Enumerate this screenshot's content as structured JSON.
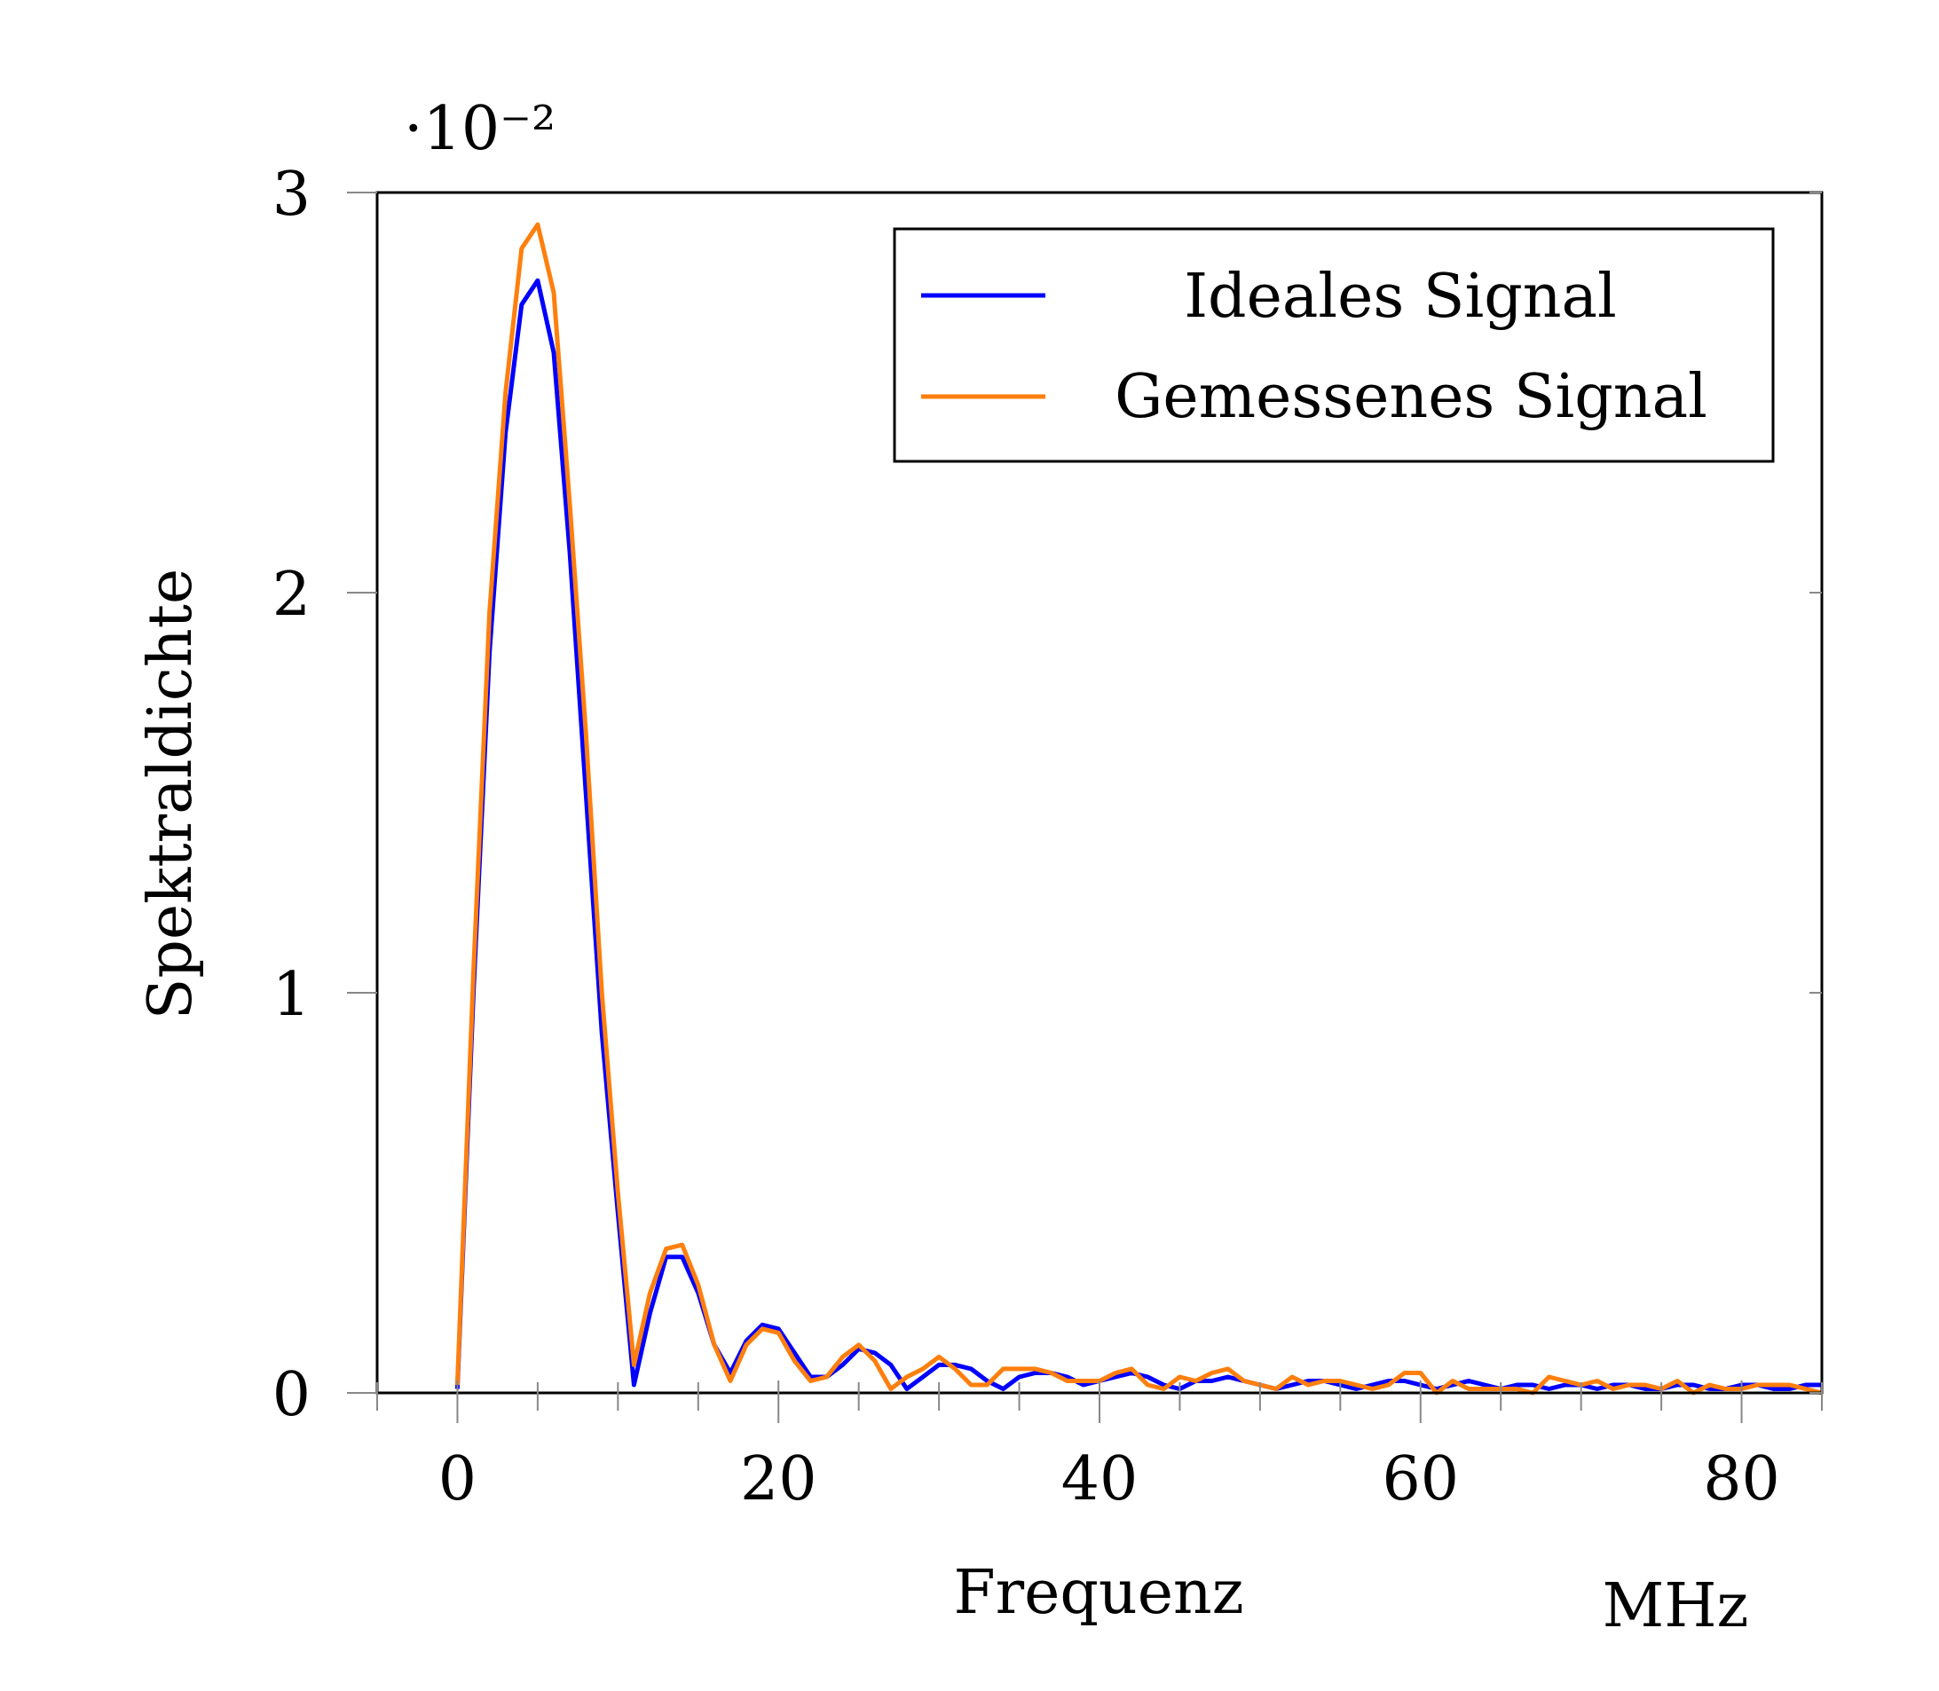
{
  "chart_data": {
    "type": "line",
    "xlabel": "Frequenz",
    "xunit": "MHz",
    "ylabel": "Spektraldichte",
    "y_scale_label": "·10⁻²",
    "xlim": [
      -5,
      85
    ],
    "ylim": [
      0,
      3
    ],
    "x_ticks": [
      0,
      20,
      40,
      60,
      80
    ],
    "y_ticks": [
      0,
      1,
      2,
      3
    ],
    "grid": false,
    "legend_position": "top-right",
    "colors": {
      "ideal": "#0000ff",
      "measured": "#ff7f0e"
    },
    "series": [
      {
        "name": "Ideales Signal",
        "color": "#0000ff",
        "x": [
          0,
          1,
          2,
          3,
          4,
          5,
          6,
          7,
          8,
          9,
          10,
          11,
          12,
          13,
          14,
          15,
          16,
          17,
          18,
          19,
          20,
          21,
          22,
          23,
          24,
          25,
          26,
          27,
          28,
          29,
          30,
          31,
          32,
          33,
          34,
          35,
          36,
          37,
          38,
          39,
          40,
          41,
          42,
          43,
          44,
          45,
          46,
          47,
          48,
          49,
          50,
          51,
          52,
          53,
          54,
          55,
          56,
          57,
          58,
          59,
          60,
          61,
          62,
          63,
          64,
          65,
          66,
          67,
          68,
          69,
          70,
          71,
          72,
          73,
          74,
          75,
          76,
          77,
          78,
          79,
          80,
          81,
          82,
          83,
          84,
          85
        ],
        "values": [
          0.01,
          1.0,
          1.85,
          2.4,
          2.72,
          2.78,
          2.6,
          2.1,
          1.5,
          0.9,
          0.45,
          0.02,
          0.2,
          0.34,
          0.34,
          0.25,
          0.12,
          0.05,
          0.13,
          0.17,
          0.16,
          0.1,
          0.04,
          0.04,
          0.07,
          0.11,
          0.1,
          0.07,
          0.01,
          0.04,
          0.07,
          0.07,
          0.06,
          0.03,
          0.01,
          0.04,
          0.05,
          0.05,
          0.04,
          0.02,
          0.03,
          0.04,
          0.05,
          0.04,
          0.02,
          0.01,
          0.03,
          0.03,
          0.04,
          0.03,
          0.02,
          0.01,
          0.02,
          0.03,
          0.03,
          0.02,
          0.01,
          0.02,
          0.03,
          0.03,
          0.02,
          0.01,
          0.02,
          0.03,
          0.02,
          0.01,
          0.02,
          0.02,
          0.01,
          0.02,
          0.02,
          0.01,
          0.02,
          0.02,
          0.01,
          0.01,
          0.02,
          0.02,
          0.01,
          0.01,
          0.02,
          0.02,
          0.01,
          0.01,
          0.02,
          0.02
        ]
      },
      {
        "name": "Gemessenes Signal",
        "color": "#ff7f0e",
        "x": [
          0,
          1,
          2,
          3,
          4,
          5,
          6,
          7,
          8,
          9,
          10,
          11,
          12,
          13,
          14,
          15,
          16,
          17,
          18,
          19,
          20,
          21,
          22,
          23,
          24,
          25,
          26,
          27,
          28,
          29,
          30,
          31,
          32,
          33,
          34,
          35,
          36,
          37,
          38,
          39,
          40,
          41,
          42,
          43,
          44,
          45,
          46,
          47,
          48,
          49,
          50,
          51,
          52,
          53,
          54,
          55,
          56,
          57,
          58,
          59,
          60,
          61,
          62,
          63,
          64,
          65,
          66,
          67,
          68,
          69,
          70,
          71,
          72,
          73,
          74,
          75,
          76,
          77,
          78,
          79,
          80,
          81,
          82,
          83,
          84,
          85
        ],
        "values": [
          0.02,
          1.05,
          1.95,
          2.5,
          2.86,
          2.92,
          2.75,
          2.22,
          1.65,
          1.0,
          0.5,
          0.07,
          0.25,
          0.36,
          0.37,
          0.27,
          0.12,
          0.03,
          0.12,
          0.16,
          0.15,
          0.08,
          0.03,
          0.04,
          0.09,
          0.12,
          0.08,
          0.01,
          0.04,
          0.06,
          0.09,
          0.06,
          0.02,
          0.02,
          0.06,
          0.06,
          0.06,
          0.05,
          0.03,
          0.03,
          0.03,
          0.05,
          0.06,
          0.02,
          0.01,
          0.04,
          0.03,
          0.05,
          0.06,
          0.03,
          0.02,
          0.01,
          0.04,
          0.02,
          0.03,
          0.03,
          0.02,
          0.01,
          0.02,
          0.05,
          0.05,
          0.0,
          0.03,
          0.01,
          0.01,
          0.01,
          0.01,
          0.0,
          0.04,
          0.03,
          0.02,
          0.03,
          0.01,
          0.02,
          0.02,
          0.01,
          0.03,
          0.0,
          0.02,
          0.01,
          0.01,
          0.02,
          0.02,
          0.02,
          0.01,
          0.0
        ]
      }
    ]
  }
}
